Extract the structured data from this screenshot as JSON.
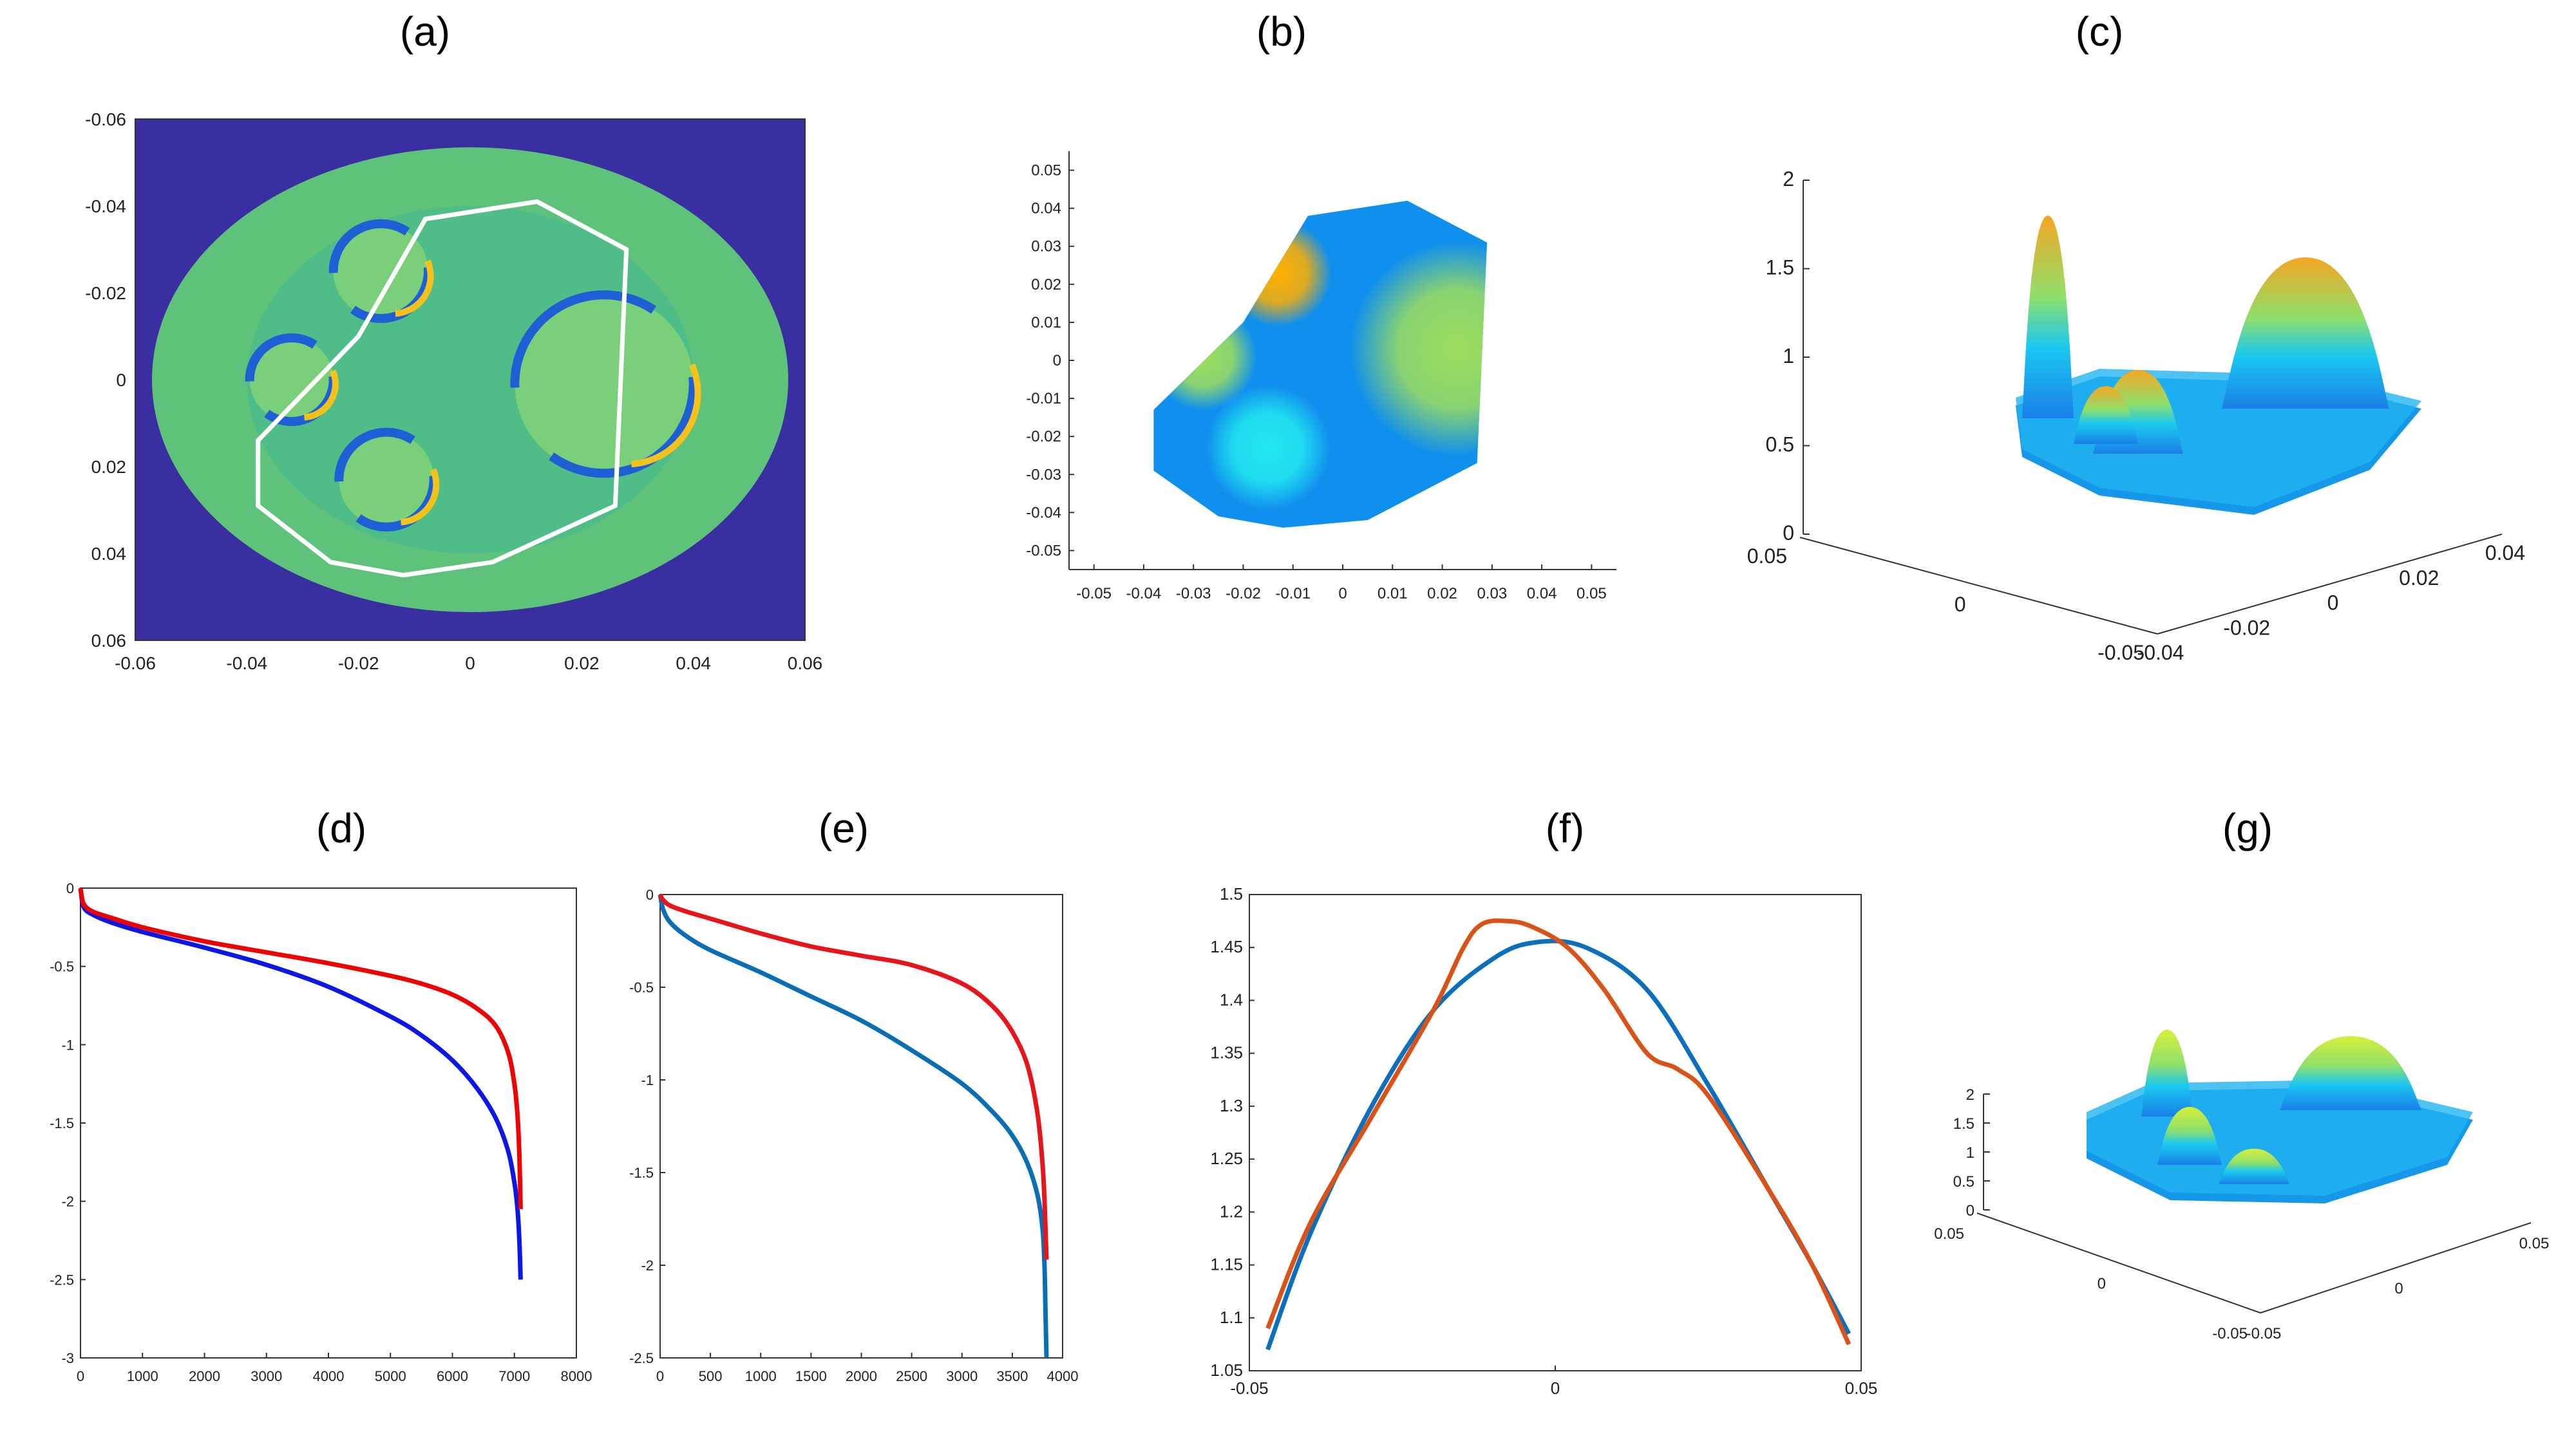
{
  "chart_data": [
    {
      "id": "a",
      "label": "(a)",
      "type": "heatmap",
      "description_axes": true,
      "x_ticks": [
        "-0.06",
        "-0.04",
        "-0.02",
        "0",
        "0.02",
        "0.04",
        "0.06"
      ],
      "y_ticks": [
        "-0.06",
        "-0.04",
        "-0.02",
        "0",
        "0.02",
        "0.04",
        "0.06"
      ],
      "xlim": [
        -0.06,
        0.06
      ],
      "ylim": [
        -0.06,
        0.06
      ],
      "colors": {
        "background": "#3a2fa0",
        "disk": "#5ec27a",
        "inner": "#46b98f",
        "ring_hi": "#f5c21b",
        "ring_lo": "#1f5fd6",
        "boundary": "#ffffff"
      },
      "boundary_polygon": [
        [
          -0.008,
          -0.037
        ],
        [
          0.012,
          -0.041
        ],
        [
          0.028,
          -0.03
        ],
        [
          0.026,
          0.029
        ],
        [
          0.004,
          0.042
        ],
        [
          -0.012,
          0.045
        ],
        [
          -0.025,
          0.042
        ],
        [
          -0.038,
          0.029
        ],
        [
          -0.038,
          0.014
        ],
        [
          -0.02,
          -0.01
        ]
      ],
      "inclusions": [
        {
          "cx": -0.016,
          "cy": -0.025,
          "r": 0.0085
        },
        {
          "cx": -0.032,
          "cy": 0.0,
          "r": 0.0075
        },
        {
          "cx": -0.015,
          "cy": 0.023,
          "r": 0.0085
        },
        {
          "cx": 0.024,
          "cy": 0.001,
          "r": 0.016
        }
      ]
    },
    {
      "id": "b",
      "label": "(b)",
      "type": "heatmap",
      "x_ticks": [
        "-0.05",
        "-0.04",
        "-0.03",
        "-0.02",
        "-0.01",
        "0",
        "0.01",
        "0.02",
        "0.03",
        "0.04",
        "0.05"
      ],
      "y_ticks": [
        "0.05",
        "0.04",
        "0.03",
        "0.02",
        "0.01",
        "0",
        "-0.01",
        "-0.02",
        "-0.03",
        "-0.04",
        "-0.05"
      ],
      "xlim": [
        -0.055,
        0.055
      ],
      "ylim": [
        -0.055,
        0.055
      ],
      "colors": {
        "base": "#0f8fee",
        "hot": "#ffb000",
        "warm": "#9edf5c",
        "cyan": "#22e8f0"
      },
      "region_polygon": [
        [
          -0.007,
          0.038
        ],
        [
          0.013,
          0.042
        ],
        [
          0.029,
          0.031
        ],
        [
          0.027,
          -0.027
        ],
        [
          0.005,
          -0.042
        ],
        [
          -0.012,
          -0.044
        ],
        [
          -0.025,
          -0.041
        ],
        [
          -0.038,
          -0.029
        ],
        [
          -0.038,
          -0.013
        ],
        [
          -0.02,
          0.01
        ]
      ],
      "blobs": [
        {
          "cx": -0.013,
          "cy": 0.023,
          "r": 0.006,
          "kind": "hot"
        },
        {
          "cx": -0.028,
          "cy": 0.001,
          "r": 0.006,
          "kind": "warm"
        },
        {
          "cx": -0.015,
          "cy": -0.023,
          "r": 0.007,
          "kind": "cyan"
        },
        {
          "cx": 0.023,
          "cy": 0.003,
          "r": 0.012,
          "kind": "warm"
        }
      ]
    },
    {
      "id": "c",
      "label": "(c)",
      "type": "surface",
      "z_ticks": [
        "0",
        "0.5",
        "1",
        "1.5",
        "2"
      ],
      "y_ticks": [
        "0.05",
        "0",
        "-0.05"
      ],
      "x_ticks": [
        "-0.04",
        "-0.02",
        "0",
        "0.02",
        "0.04"
      ],
      "colors": {
        "base": "#1aa9f0",
        "peak": "#f5a623",
        "mid": "#8fe06a"
      }
    },
    {
      "id": "d",
      "label": "(d)",
      "type": "line",
      "x_ticks": [
        "0",
        "1000",
        "2000",
        "3000",
        "4000",
        "5000",
        "6000",
        "7000",
        "8000"
      ],
      "y_ticks": [
        "0",
        "-0.5",
        "-1",
        "-1.5",
        "-2",
        "-2.5",
        "-3"
      ],
      "xlim": [
        0,
        8000
      ],
      "ylim": [
        -3,
        0
      ],
      "series": [
        {
          "name": "blue",
          "color": "#0b16e8",
          "x": [
            0,
            50,
            200,
            500,
            1000,
            2000,
            3000,
            4000,
            5000,
            5500,
            6000,
            6400,
            6700,
            6900,
            7000,
            7050,
            7080,
            7100
          ],
          "y": [
            0,
            -0.12,
            -0.17,
            -0.22,
            -0.28,
            -0.38,
            -0.49,
            -0.63,
            -0.82,
            -0.94,
            -1.1,
            -1.28,
            -1.47,
            -1.68,
            -1.88,
            -2.05,
            -2.25,
            -2.5
          ]
        },
        {
          "name": "red",
          "color": "#f00000",
          "x": [
            0,
            50,
            200,
            500,
            1000,
            2000,
            3000,
            4000,
            5000,
            5500,
            6000,
            6400,
            6700,
            6900,
            7000,
            7050,
            7080,
            7100
          ],
          "y": [
            0,
            -0.1,
            -0.15,
            -0.19,
            -0.25,
            -0.34,
            -0.41,
            -0.48,
            -0.56,
            -0.61,
            -0.68,
            -0.77,
            -0.88,
            -1.05,
            -1.25,
            -1.45,
            -1.7,
            -2.05
          ]
        }
      ]
    },
    {
      "id": "e",
      "label": "(e)",
      "type": "line",
      "x_ticks": [
        "0",
        "500",
        "1000",
        "1500",
        "2000",
        "2500",
        "3000",
        "3500",
        "4000"
      ],
      "y_ticks": [
        "0",
        "-0.5",
        "-1",
        "-1.5",
        "-2",
        "-2.5"
      ],
      "xlim": [
        0,
        4000
      ],
      "ylim": [
        -2.5,
        0
      ],
      "series": [
        {
          "name": "blue",
          "color": "#0a6eb4",
          "x": [
            0,
            30,
            100,
            250,
            500,
            1000,
            1500,
            2000,
            2500,
            3000,
            3300,
            3500,
            3650,
            3750,
            3800,
            3820,
            3830,
            3840
          ],
          "y": [
            0,
            -0.08,
            -0.15,
            -0.22,
            -0.3,
            -0.42,
            -0.55,
            -0.68,
            -0.84,
            -1.02,
            -1.17,
            -1.3,
            -1.45,
            -1.62,
            -1.8,
            -2.0,
            -2.25,
            -2.5
          ]
        },
        {
          "name": "red",
          "color": "#e8141c",
          "x": [
            0,
            30,
            100,
            250,
            500,
            1000,
            1500,
            2000,
            2500,
            3000,
            3300,
            3500,
            3650,
            3750,
            3800,
            3820,
            3830,
            3840
          ],
          "y": [
            0,
            -0.03,
            -0.06,
            -0.09,
            -0.13,
            -0.21,
            -0.28,
            -0.33,
            -0.38,
            -0.48,
            -0.6,
            -0.74,
            -0.92,
            -1.18,
            -1.45,
            -1.65,
            -1.8,
            -1.97
          ]
        }
      ]
    },
    {
      "id": "f",
      "label": "(f)",
      "type": "line",
      "x_ticks": [
        "-0.05",
        "0",
        "0.05"
      ],
      "y_ticks": [
        "1.5",
        "1.45",
        "1.4",
        "1.35",
        "1.3",
        "1.25",
        "1.2",
        "1.15",
        "1.1",
        "1.05"
      ],
      "xlim": [
        -0.05,
        0.05
      ],
      "ylim": [
        1.05,
        1.5
      ],
      "series": [
        {
          "name": "blue",
          "color": "#0b6fbd",
          "x": [
            -0.047,
            -0.04,
            -0.03,
            -0.02,
            -0.01,
            -0.003,
            0.005,
            0.015,
            0.025,
            0.035,
            0.042,
            0.048
          ],
          "y": [
            1.07,
            1.18,
            1.3,
            1.39,
            1.44,
            1.455,
            1.45,
            1.41,
            1.32,
            1.22,
            1.15,
            1.085
          ]
        },
        {
          "name": "orange",
          "color": "#d95319",
          "x": [
            -0.047,
            -0.04,
            -0.03,
            -0.02,
            -0.015,
            -0.012,
            -0.008,
            -0.004,
            0.002,
            0.008,
            0.015,
            0.02,
            0.025,
            0.035,
            0.042,
            0.048
          ],
          "y": [
            1.09,
            1.19,
            1.29,
            1.39,
            1.45,
            1.472,
            1.475,
            1.47,
            1.45,
            1.41,
            1.35,
            1.335,
            1.31,
            1.22,
            1.15,
            1.075
          ]
        }
      ]
    },
    {
      "id": "g",
      "label": "(g)",
      "type": "surface",
      "z_ticks": [
        "0",
        "0.5",
        "1",
        "1.5",
        "2"
      ],
      "y_ticks": [
        "0.05",
        "0",
        "-0.05"
      ],
      "x_ticks": [
        "-0.05",
        "0",
        "0.05"
      ],
      "colors": {
        "base": "#1aa9f0",
        "peak": "#d8ee3a",
        "mid": "#8fe06a"
      }
    }
  ]
}
